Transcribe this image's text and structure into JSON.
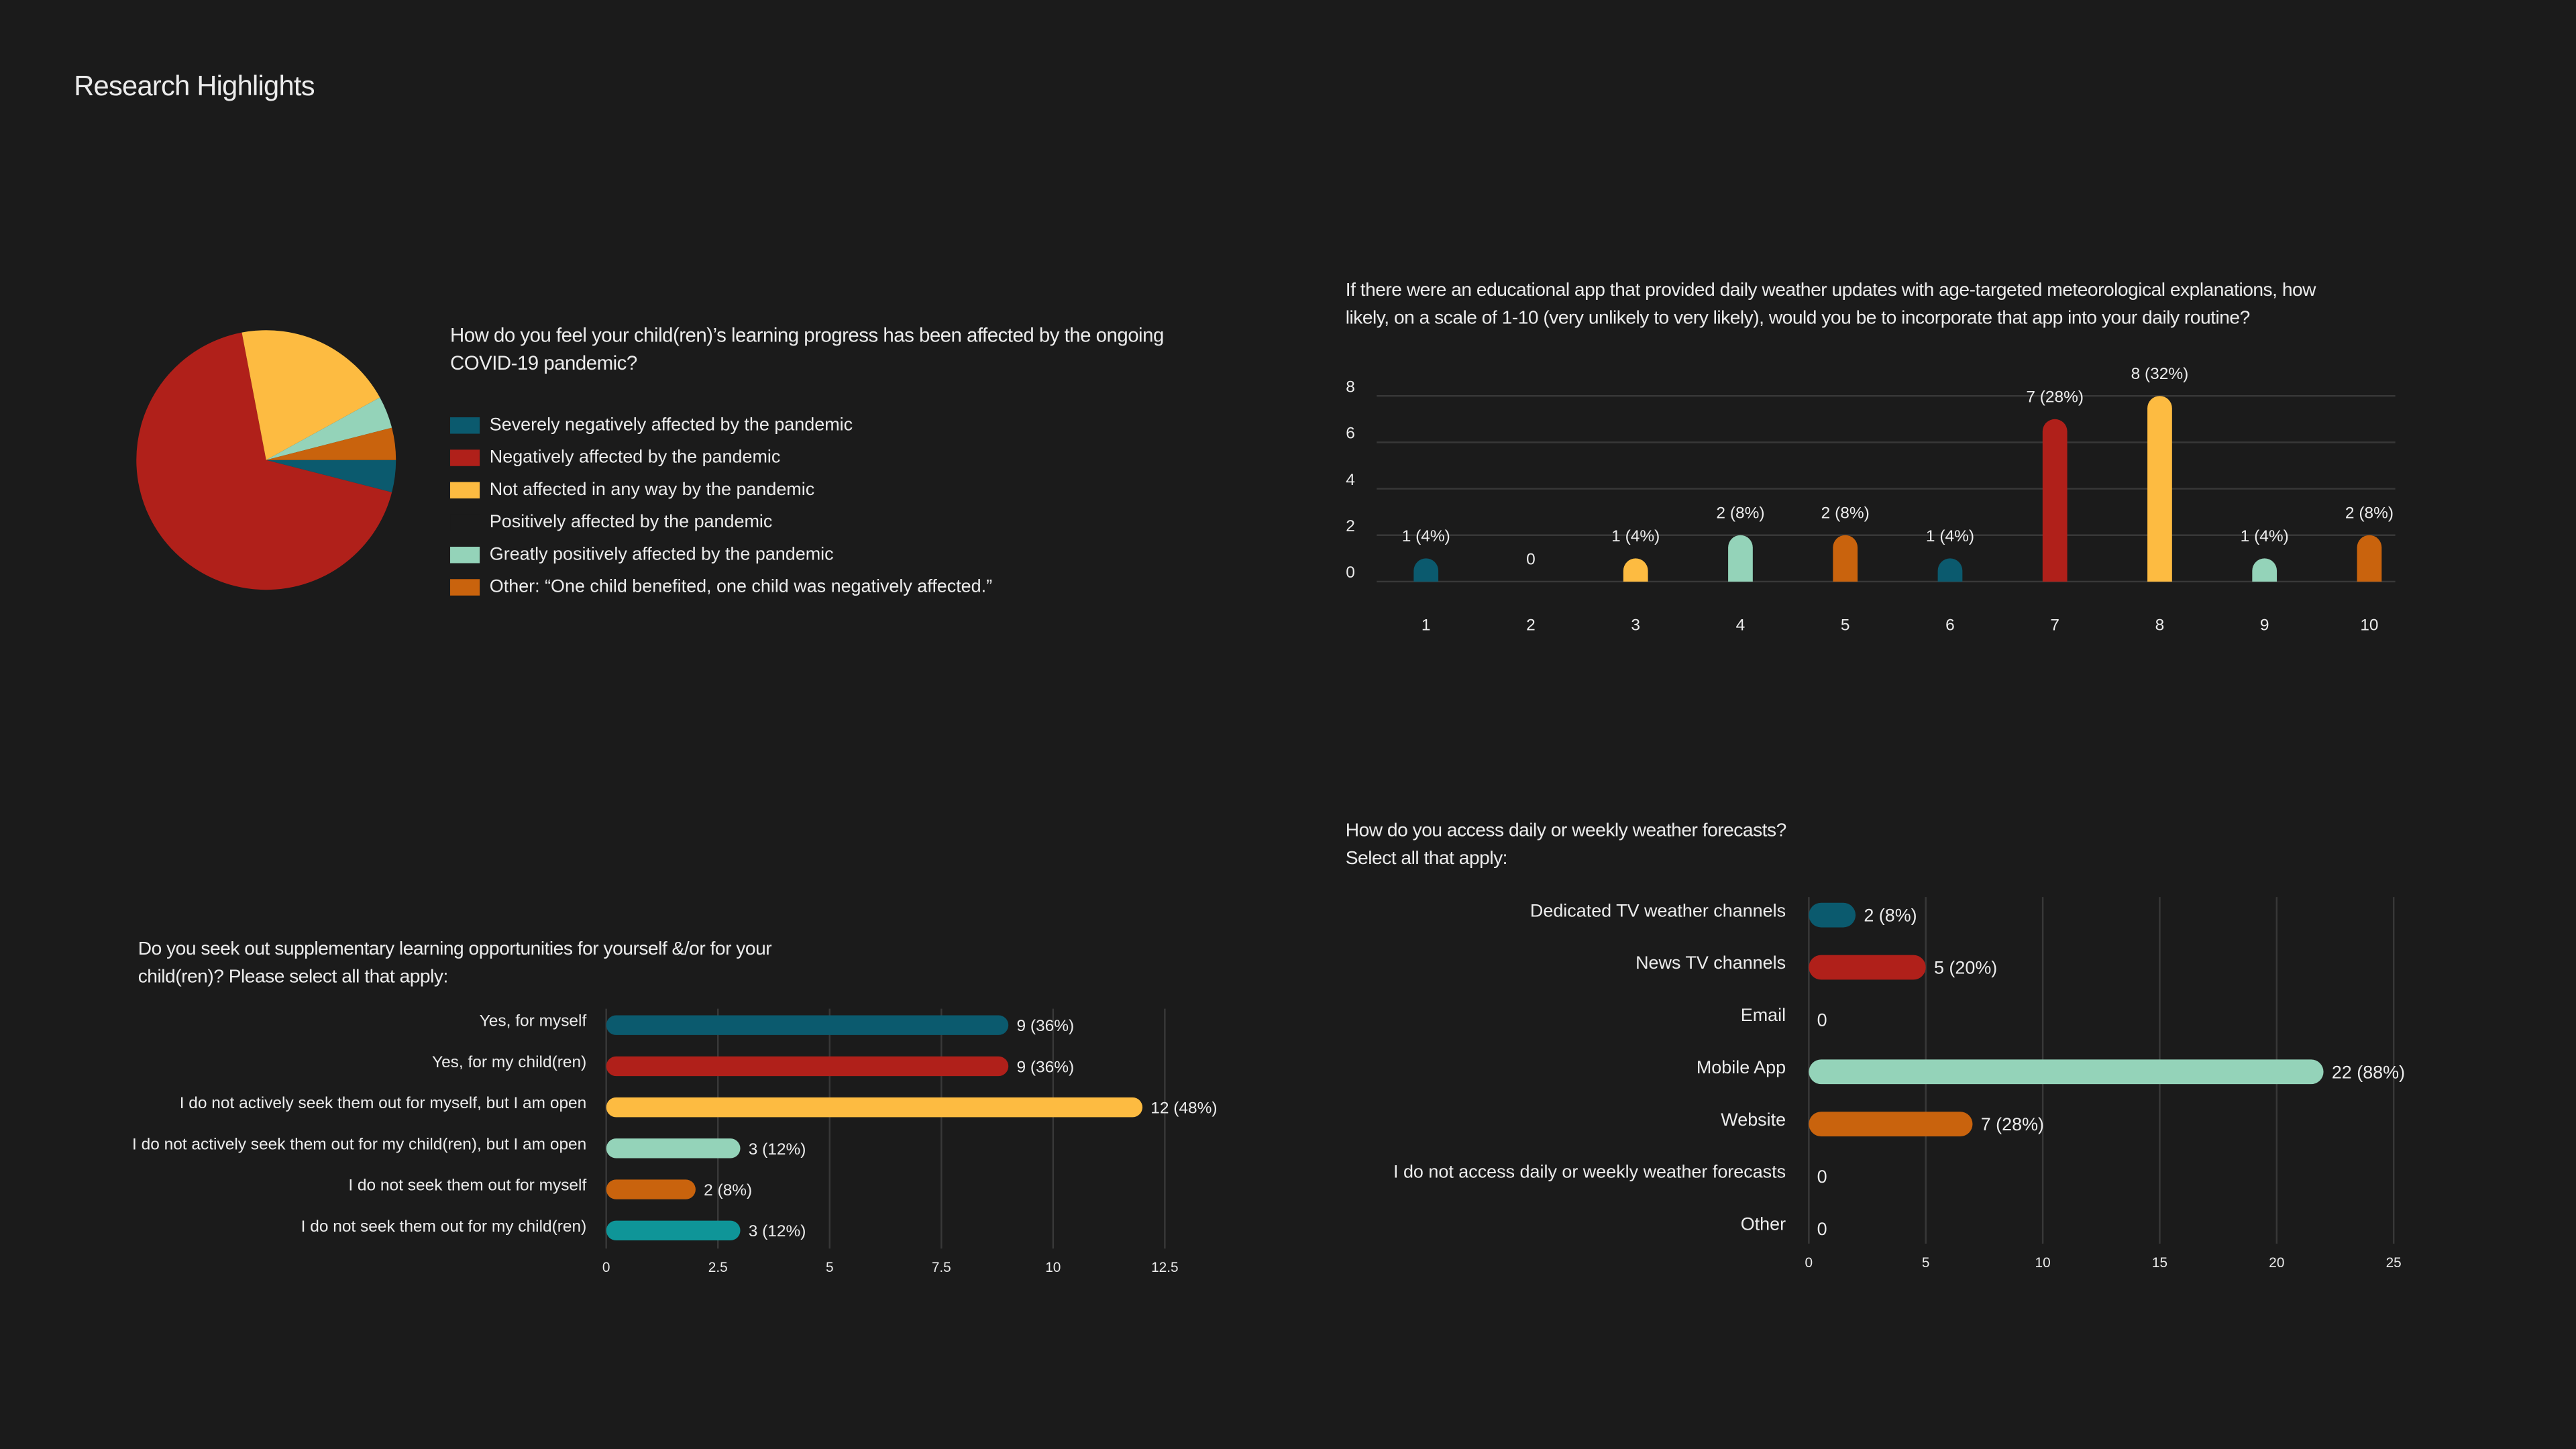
{
  "title": "Research Highlights",
  "chart_data": [
    {
      "type": "pie",
      "title": "How do you feel your child(ren)’s learning progress has been affected by the ongoing COVID-19 pandemic?",
      "categories": [
        "Severely negatively affected by the pandemic",
        "Negatively affected by the pandemic",
        "Not affected in any way by the pandemic",
        "Positively affected by the pandemic",
        "Greatly positively affected by the pandemic",
        "Other: “One child benefited, one child was negatively affected.”"
      ],
      "values": [
        1,
        17,
        5,
        0,
        1,
        1
      ],
      "colors": [
        "#0b5a6e",
        "#b0201a",
        "#fdbb41",
        "#1b1b1b",
        "#94d3b9",
        "#c9630d"
      ]
    },
    {
      "type": "bar",
      "title": "If there were an educational app that provided daily weather updates with age-targeted meteorological explanations, how likely, on a scale of 1-10 (very unlikely to very likely), would you be to incorporate that app into your daily routine?",
      "categories": [
        "1",
        "2",
        "3",
        "4",
        "5",
        "6",
        "7",
        "8",
        "9",
        "10"
      ],
      "values": [
        1,
        0,
        1,
        2,
        2,
        1,
        7,
        8,
        1,
        2
      ],
      "value_labels": [
        "1 (4%)",
        "0",
        "1 (4%)",
        "2 (8%)",
        "2 (8%)",
        "1 (4%)",
        "7 (28%)",
        "8 (32%)",
        "1 (4%)",
        "2 (8%)"
      ],
      "colors": [
        "#0b5a6e",
        null,
        "#fdbb41",
        "#94d3b9",
        "#c9630d",
        "#0b5a6e",
        "#b0201a",
        "#fdbb41",
        "#94d3b9",
        "#c9630d"
      ],
      "ylim": [
        0,
        8
      ],
      "yticks": [
        0,
        2,
        4,
        6,
        8
      ],
      "grid": true,
      "horizontal": false
    },
    {
      "type": "bar",
      "title": "Do you seek out supplementary learning opportunities for yourself &/or for your child(ren)? Please select all that apply:",
      "categories": [
        "Yes, for myself",
        "Yes, for my child(ren)",
        "I do not actively seek them out for myself, but I am open",
        "I do not actively seek them out for my child(ren), but I am open",
        "I do not seek them out for myself",
        "I do not seek them out for my child(ren)"
      ],
      "values": [
        9,
        9,
        12,
        3,
        2,
        3
      ],
      "value_labels": [
        "9 (36%)",
        "9 (36%)",
        "12 (48%)",
        "3 (12%)",
        "2 (8%)",
        "3 (12%)"
      ],
      "colors": [
        "#0b5a6e",
        "#b0201a",
        "#fdbb41",
        "#94d3b9",
        "#c9630d",
        "#0f9598"
      ],
      "xlim": [
        0,
        12.5
      ],
      "xticks": [
        0,
        2.5,
        5,
        7.5,
        10,
        12.5
      ],
      "grid": true,
      "horizontal": true
    },
    {
      "type": "bar",
      "title": "How do you access daily or weekly weather forecasts? Select all that apply:",
      "categories": [
        "Dedicated TV weather channels",
        "News TV channels",
        "Email",
        "Mobile App",
        "Website",
        "I do not access daily or weekly weather forecasts",
        "Other"
      ],
      "values": [
        2,
        5,
        0,
        22,
        7,
        0,
        0
      ],
      "value_labels": [
        "2 (8%)",
        "5 (20%)",
        "0",
        "22 (88%)",
        "7 (28%)",
        "0",
        "0"
      ],
      "colors": [
        "#0b5a6e",
        "#b0201a",
        null,
        "#94d3b9",
        "#c9630d",
        null,
        null
      ],
      "xlim": [
        0,
        25
      ],
      "xticks": [
        0,
        5,
        10,
        15,
        20,
        25
      ],
      "grid": true,
      "horizontal": true
    }
  ]
}
